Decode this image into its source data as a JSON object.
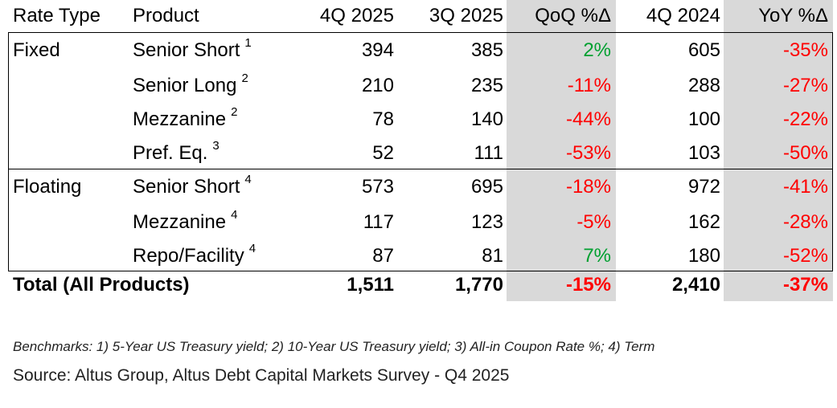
{
  "table": {
    "columns": [
      "Rate Type",
      "Product",
      "4Q 2025",
      "3Q 2025",
      "QoQ %Δ",
      "4Q 2024",
      "YoY %Δ"
    ],
    "groups": [
      {
        "rate_type": "Fixed",
        "rows": [
          {
            "product": "Senior Short",
            "note": "1",
            "values": [
              "394",
              "385",
              "2%",
              "605",
              "-35%"
            ]
          },
          {
            "product": "Senior Long",
            "note": "2",
            "values": [
              "210",
              "235",
              "-11%",
              "288",
              "-27%"
            ]
          },
          {
            "product": "Mezzanine",
            "note": "2",
            "values": [
              "78",
              "140",
              "-44%",
              "100",
              "-22%"
            ]
          },
          {
            "product": "Pref. Eq.",
            "note": "3",
            "values": [
              "52",
              "111",
              "-53%",
              "103",
              "-50%"
            ]
          }
        ]
      },
      {
        "rate_type": "Floating",
        "rows": [
          {
            "product": "Senior Short",
            "note": "4",
            "values": [
              "573",
              "695",
              "-18%",
              "972",
              "-41%"
            ]
          },
          {
            "product": "Mezzanine",
            "note": "4",
            "values": [
              "117",
              "123",
              "-5%",
              "162",
              "-28%"
            ]
          },
          {
            "product": "Repo/Facility",
            "note": "4",
            "values": [
              "87",
              "81",
              "7%",
              "180",
              "-52%"
            ]
          }
        ]
      }
    ],
    "total": {
      "label": "Total (All Products)",
      "values": [
        "1,511",
        "1,770",
        "-15%",
        "2,410",
        "-37%"
      ]
    }
  },
  "footnote": "Benchmarks: 1) 5-Year US Treasury yield; 2) 10-Year US Treasury yield; 3) All-in Coupon Rate %; 4) Term",
  "source": "Source: Altus Group, Altus Debt Capital Markets Survey - Q4 2025"
}
